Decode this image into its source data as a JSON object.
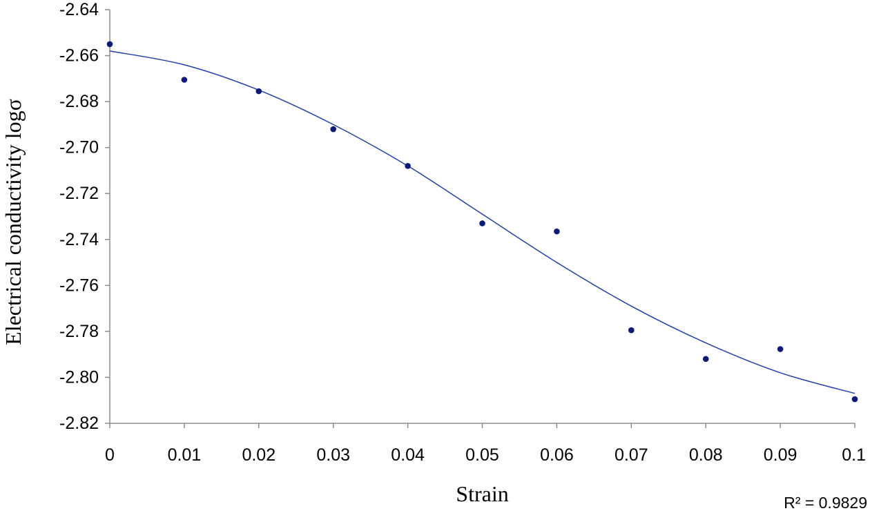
{
  "chart_data": {
    "type": "scatter",
    "title": "",
    "xlabel": "Strain",
    "ylabel": "Electrical conductivity logσ",
    "xlim": [
      0,
      0.1
    ],
    "ylim": [
      -2.82,
      -2.64
    ],
    "x_ticks": [
      "0",
      "0.01",
      "0.02",
      "0.03",
      "0.04",
      "0.05",
      "0.06",
      "0.07",
      "0.08",
      "0.09",
      "0.1"
    ],
    "x_tick_values": [
      0,
      0.01,
      0.02,
      0.03,
      0.04,
      0.05,
      0.06,
      0.07,
      0.08,
      0.09,
      0.1
    ],
    "y_ticks": [
      "-2.64",
      "-2.66",
      "-2.68",
      "-2.70",
      "-2.72",
      "-2.74",
      "-2.76",
      "-2.78",
      "-2.80",
      "-2.82"
    ],
    "y_tick_values": [
      -2.64,
      -2.66,
      -2.68,
      -2.7,
      -2.72,
      -2.74,
      -2.76,
      -2.78,
      -2.8,
      -2.82
    ],
    "grid": false,
    "series": [
      {
        "x": [
          0,
          0.01,
          0.02,
          0.03,
          0.04,
          0.05,
          0.06,
          0.07,
          0.08,
          0.09,
          0.1
        ],
        "y": [
          -2.655,
          -2.6705,
          -2.6755,
          -2.692,
          -2.708,
          -2.733,
          -2.7365,
          -2.7795,
          -2.792,
          -2.7877,
          -2.8095
        ],
        "color": "#0a1a7a"
      }
    ],
    "fit_curve": {
      "x": [
        0,
        0.01,
        0.02,
        0.03,
        0.04,
        0.05,
        0.06,
        0.07,
        0.08,
        0.09,
        0.1
      ],
      "y": [
        -2.658,
        -2.664,
        -2.675,
        -2.69,
        -2.708,
        -2.729,
        -2.75,
        -2.769,
        -2.785,
        -2.798,
        -2.807
      ],
      "color": "#1f3fb0"
    },
    "annotation": "R² = 0.9829"
  }
}
